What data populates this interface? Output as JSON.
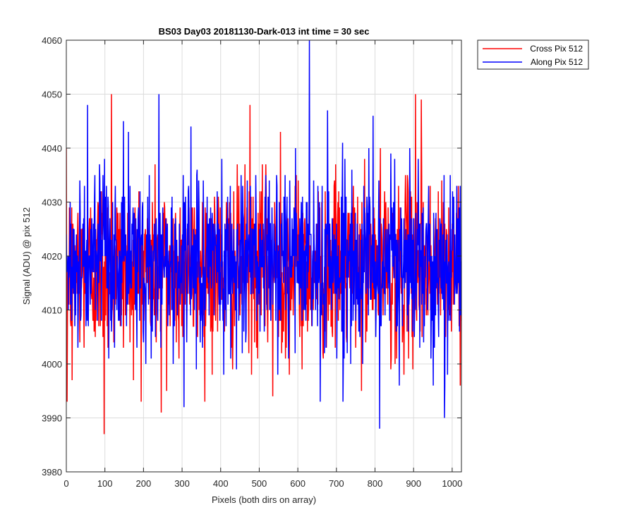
{
  "chart_data": {
    "type": "line",
    "title": "BS03 Day03 20181130-Dark-013 int time = 30 sec",
    "xlabel": "Pixels (both dirs on array)",
    "ylabel": "Signal (ADU) @ pix 512",
    "xlim": [
      0,
      1024
    ],
    "ylim": [
      3980,
      4060
    ],
    "xticks": [
      "0",
      "100",
      "200",
      "300",
      "400",
      "500",
      "600",
      "700",
      "800",
      "900",
      "1000"
    ],
    "yticks": [
      "3980",
      "3990",
      "4000",
      "4010",
      "4020",
      "4030",
      "4040",
      "4050",
      "4060"
    ],
    "grid": true,
    "legend_position": "outside-top-right",
    "series": [
      {
        "name": "Cross Pix 512",
        "color": "#ff0000"
      },
      {
        "name": "Along Pix 512",
        "color": "#0000ff"
      }
    ]
  }
}
